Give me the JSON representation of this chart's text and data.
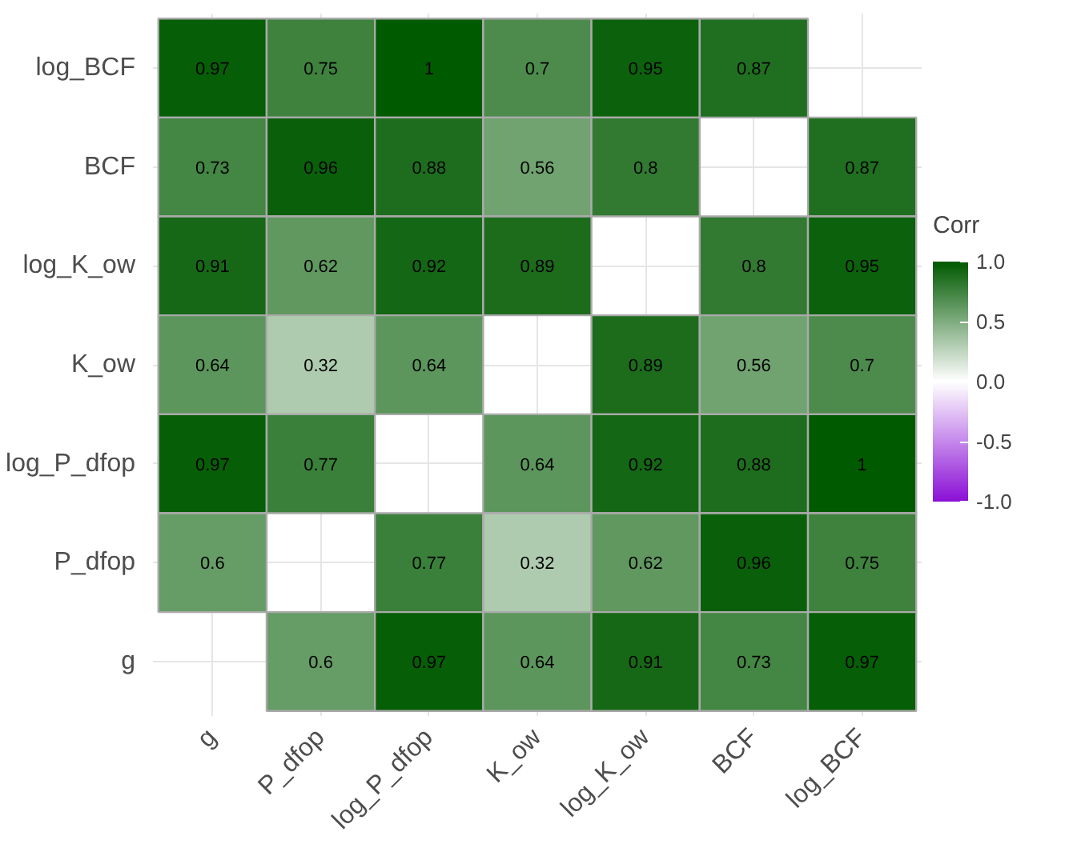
{
  "chart_data": {
    "type": "heatmap",
    "clabel": "Corr",
    "categories": [
      "g",
      "P_dfop",
      "log_P_dfop",
      "K_ow",
      "log_K_ow",
      "BCF",
      "log_BCF"
    ],
    "y_categories": [
      "log_BCF",
      "BCF",
      "log_K_ow",
      "K_ow",
      "log_P_dfop",
      "P_dfop",
      "g"
    ],
    "cells": [
      [
        0.97,
        0.75,
        1,
        0.7,
        0.95,
        0.87,
        null
      ],
      [
        0.73,
        0.96,
        0.88,
        0.56,
        0.8,
        null,
        0.87
      ],
      [
        0.91,
        0.62,
        0.92,
        0.89,
        null,
        0.8,
        0.95
      ],
      [
        0.64,
        0.32,
        0.64,
        null,
        0.89,
        0.56,
        0.7
      ],
      [
        0.97,
        0.77,
        null,
        0.64,
        0.92,
        0.88,
        1
      ],
      [
        0.6,
        null,
        0.77,
        0.32,
        0.62,
        0.96,
        0.75
      ],
      [
        null,
        0.6,
        0.97,
        0.64,
        0.91,
        0.73,
        0.97
      ]
    ],
    "clim": [
      -1,
      1
    ],
    "cticks": [
      {
        "value": -1,
        "label": "-1.0"
      },
      -0.5,
      {
        "value": 0,
        "label": "0.0"
      },
      0.5,
      {
        "value": 1,
        "label": "1.0"
      }
    ],
    "data_labels": true,
    "grid": true
  }
}
